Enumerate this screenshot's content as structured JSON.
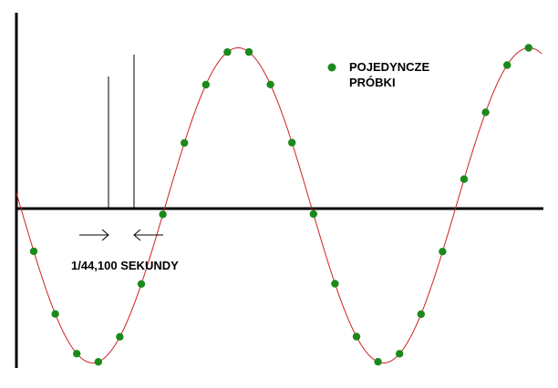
{
  "legend": {
    "line1": "POJEDYNCZE",
    "line2": "PRÓBKI",
    "marker_color": "#1b8a1b"
  },
  "annotation": {
    "interval_label": "1/44,100 SEKUNDY"
  },
  "colors": {
    "curve": "#cc2222",
    "sample": "#1b8a1b",
    "axis": "#000000"
  },
  "diagram": {
    "kind": "sampled-sine-wave",
    "sample_count": 24
  }
}
